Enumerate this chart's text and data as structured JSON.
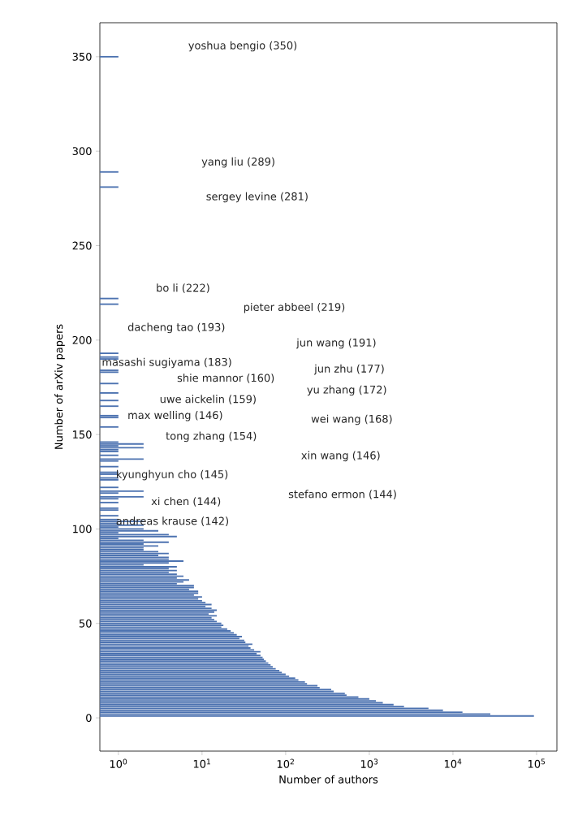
{
  "chart_data": {
    "type": "bar",
    "orientation": "horizontal",
    "log": "x",
    "xlabel": "Number of authors",
    "ylabel": "Number of arXiv papers",
    "color": "#4c72b0",
    "x": [
      1,
      2,
      3,
      4,
      5,
      6,
      7,
      8,
      9,
      10,
      11,
      12,
      13,
      14,
      15,
      16,
      17,
      18,
      19,
      20,
      21,
      22,
      23,
      24,
      25,
      26,
      27,
      28,
      29,
      30,
      31,
      32,
      33,
      34,
      35,
      36,
      37,
      38,
      39,
      40,
      41,
      42,
      43,
      44,
      45,
      46,
      47,
      48,
      49,
      50,
      51,
      52,
      53,
      54,
      55,
      56,
      57,
      58,
      59,
      60,
      61,
      62,
      63,
      64,
      65,
      66,
      67,
      68,
      69,
      70,
      71,
      72,
      73,
      74,
      75,
      76,
      77,
      78,
      79,
      80,
      81,
      82,
      83,
      84,
      85,
      86,
      87,
      88,
      89,
      90,
      91,
      92,
      93,
      94,
      95,
      96,
      97,
      98,
      99,
      100,
      101,
      102,
      103,
      104,
      105,
      107,
      110,
      111,
      114,
      116,
      117,
      119,
      120,
      122,
      126,
      127,
      129,
      130,
      133,
      136,
      137,
      139,
      141,
      142,
      143,
      144,
      145,
      146,
      154,
      159,
      160,
      165,
      168,
      172,
      177,
      183,
      184,
      190,
      191,
      193,
      219,
      222,
      281,
      289,
      350
    ],
    "values": [
      93000,
      28000,
      13000,
      7600,
      5100,
      2600,
      1950,
      1450,
      1200,
      1000,
      740,
      535,
      510,
      375,
      350,
      255,
      240,
      180,
      170,
      142,
      130,
      110,
      100,
      90,
      84,
      76,
      70,
      66,
      62,
      58,
      55,
      53,
      50,
      45,
      50,
      42,
      38,
      36,
      40,
      33,
      32,
      28,
      30,
      26,
      24,
      22,
      20,
      17,
      18,
      17,
      15,
      14,
      13,
      15,
      12,
      14,
      15,
      13,
      11,
      13,
      11,
      10,
      9,
      10,
      8,
      9,
      9,
      7,
      8,
      8,
      5,
      6,
      7,
      5,
      6,
      5,
      4,
      5,
      4,
      5,
      2,
      4,
      6,
      4,
      4,
      3,
      4,
      3,
      2,
      2,
      3,
      2,
      4,
      2,
      1,
      5,
      4,
      1,
      3,
      2,
      1,
      2,
      1,
      2,
      1,
      1,
      1,
      1,
      1,
      1,
      2,
      1,
      2,
      1,
      1,
      1,
      1,
      1,
      1,
      1,
      2,
      1,
      1,
      1,
      2,
      1,
      2,
      1,
      1,
      1,
      1,
      1,
      1,
      1,
      1,
      1,
      1,
      1,
      1,
      1,
      1,
      1,
      1,
      1,
      1
    ],
    "xlim": [
      0.6,
      175000
    ],
    "xticks": [
      {
        "value": 1,
        "label": "10$^{0}$"
      },
      {
        "value": 10,
        "label": "10$^{1}$"
      },
      {
        "value": 100,
        "label": "10$^{2}$"
      },
      {
        "value": 1000,
        "label": "10$^{3}$"
      },
      {
        "value": 10000,
        "label": "10$^{4}$"
      },
      {
        "value": 100000,
        "label": "10$^{5}$"
      }
    ],
    "ylim": [
      -17.6,
      368
    ],
    "yticks": [
      0,
      50,
      100,
      150,
      200,
      250,
      300,
      350
    ],
    "annotations": [
      "yoshua bengio (350)",
      "yang liu (289)",
      "sergey levine (281)",
      "bo li (222)",
      "pieter abbeel (219)",
      "dacheng tao (193)",
      "jun wang (191)",
      "masashi sugiyama (183)",
      "jun zhu (177)",
      "shie mannor (160)",
      "yu zhang (172)",
      "uwe aickelin (159)",
      "max welling (146)",
      "wei wang (168)",
      "tong zhang (154)",
      "xin wang (146)",
      "kyunghyun cho (145)",
      "stefano ermon (144)",
      "xi chen (144)",
      "andreas krause (142)"
    ]
  }
}
